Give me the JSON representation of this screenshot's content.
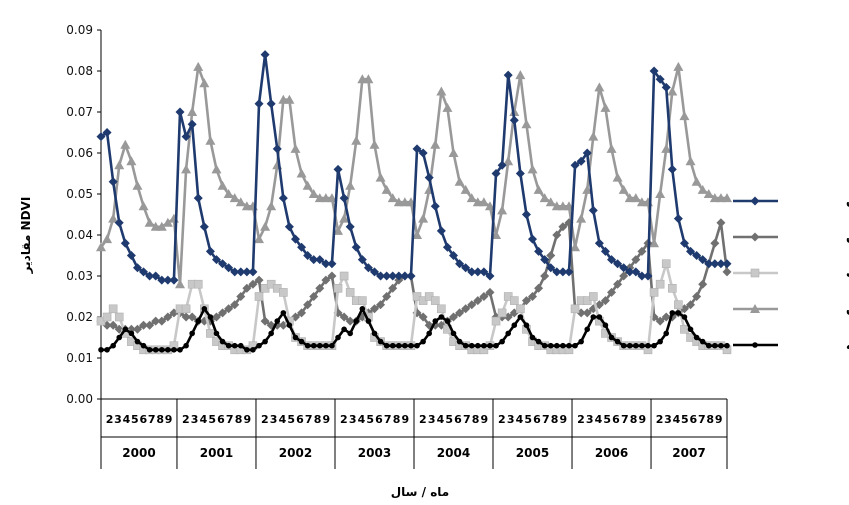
{
  "chart_data": {
    "type": "line",
    "title": "",
    "xlabel": "ماه / سال",
    "ylabel": "مقادیر NDVI",
    "ylim": [
      0,
      0.09
    ],
    "ytick_step": 0.01,
    "ytick_labels": [
      "0.00",
      "0.01",
      "0.02",
      "0.03",
      "0.04",
      "0.05",
      "0.06",
      "0.07",
      "0.08",
      "0.09"
    ],
    "years": [
      "2000",
      "2001",
      "2002",
      "2003",
      "2004",
      "2005",
      "2006",
      "2007"
    ],
    "month_labels": [
      [
        "2",
        "3",
        "4",
        "5",
        "6",
        "7",
        "8",
        "9"
      ],
      [
        "2",
        "3",
        "4",
        "5",
        "6",
        "7",
        "8",
        "9"
      ],
      [
        "2",
        "3",
        "4",
        "5",
        "6",
        "7",
        "8",
        "9"
      ],
      [
        "2",
        "3",
        "4",
        "5",
        "6",
        "7",
        "8",
        "9"
      ],
      [
        "2",
        "3",
        "4",
        "5",
        "6",
        "7",
        "8",
        "9"
      ],
      [
        "2",
        "3",
        "4",
        "5",
        "6",
        "7",
        "8",
        "9"
      ],
      [
        "2",
        "3",
        "4",
        "5",
        "6",
        "7",
        "8",
        "9"
      ],
      [
        "2",
        "3",
        "4",
        "5",
        "6",
        "7",
        "8",
        "9"
      ]
    ],
    "grid": false,
    "legend_position": "right",
    "series": [
      {
        "name": "آیخوان",
        "color": "#1f3a6e",
        "marker": "diamond",
        "values": [
          0.064,
          0.065,
          0.053,
          0.043,
          0.038,
          0.035,
          0.032,
          0.031,
          0.03,
          0.03,
          0.029,
          0.029,
          0.029,
          0.07,
          0.064,
          0.067,
          0.049,
          0.042,
          0.036,
          0.034,
          0.033,
          0.032,
          0.031,
          0.031,
          0.031,
          0.031,
          0.072,
          0.084,
          0.072,
          0.061,
          0.049,
          0.042,
          0.039,
          0.037,
          0.035,
          0.034,
          0.034,
          0.033,
          0.033,
          0.056,
          0.049,
          0.042,
          0.037,
          0.034,
          0.032,
          0.031,
          0.03,
          0.03,
          0.03,
          0.03,
          0.03,
          0.03,
          0.061,
          0.06,
          0.054,
          0.047,
          0.041,
          0.037,
          0.035,
          0.033,
          0.032,
          0.031,
          0.031,
          0.031,
          0.03,
          0.055,
          0.057,
          0.079,
          0.068,
          0.055,
          0.045,
          0.039,
          0.036,
          0.034,
          0.032,
          0.031,
          0.031,
          0.031,
          0.057,
          0.058,
          0.06,
          0.046,
          0.038,
          0.036,
          0.034,
          0.033,
          0.032,
          0.031,
          0.031,
          0.03,
          0.03,
          0.08,
          0.078,
          0.076,
          0.056,
          0.044,
          0.038,
          0.036,
          0.035,
          0.034,
          0.033,
          0.033,
          0.033,
          0.033
        ]
      },
      {
        "name": "مهران",
        "color": "#707070",
        "marker": "diamond",
        "values": [
          0.019,
          0.018,
          0.018,
          0.017,
          0.017,
          0.017,
          0.017,
          0.018,
          0.018,
          0.019,
          0.019,
          0.02,
          0.021,
          0.021,
          0.02,
          0.02,
          0.019,
          0.019,
          0.019,
          0.02,
          0.021,
          0.022,
          0.023,
          0.025,
          0.027,
          0.028,
          0.029,
          0.019,
          0.018,
          0.018,
          0.018,
          0.019,
          0.02,
          0.021,
          0.023,
          0.025,
          0.027,
          0.029,
          0.03,
          0.021,
          0.02,
          0.019,
          0.019,
          0.02,
          0.021,
          0.022,
          0.023,
          0.025,
          0.027,
          0.029,
          0.03,
          0.03,
          0.021,
          0.02,
          0.018,
          0.018,
          0.018,
          0.019,
          0.02,
          0.021,
          0.022,
          0.023,
          0.024,
          0.025,
          0.026,
          0.02,
          0.02,
          0.02,
          0.021,
          0.022,
          0.024,
          0.025,
          0.027,
          0.03,
          0.035,
          0.04,
          0.042,
          0.043,
          0.022,
          0.021,
          0.021,
          0.022,
          0.023,
          0.024,
          0.026,
          0.028,
          0.03,
          0.032,
          0.034,
          0.036,
          0.038,
          0.02,
          0.019,
          0.02,
          0.02,
          0.021,
          0.022,
          0.023,
          0.025,
          0.028,
          0.033,
          0.038,
          0.043,
          0.031
        ]
      },
      {
        "name": "پایتخت",
        "color": "#c8c8c8",
        "marker": "square",
        "values": [
          0.019,
          0.02,
          0.022,
          0.02,
          0.016,
          0.014,
          0.013,
          0.012,
          0.012,
          0.012,
          0.012,
          0.012,
          0.013,
          0.022,
          0.022,
          0.028,
          0.028,
          0.022,
          0.016,
          0.014,
          0.013,
          0.013,
          0.012,
          0.012,
          0.012,
          0.013,
          0.025,
          0.027,
          0.028,
          0.027,
          0.026,
          0.019,
          0.015,
          0.014,
          0.013,
          0.013,
          0.013,
          0.013,
          0.013,
          0.027,
          0.03,
          0.026,
          0.024,
          0.024,
          0.02,
          0.015,
          0.014,
          0.013,
          0.013,
          0.013,
          0.013,
          0.013,
          0.025,
          0.024,
          0.025,
          0.024,
          0.022,
          0.017,
          0.014,
          0.013,
          0.013,
          0.012,
          0.012,
          0.012,
          0.013,
          0.019,
          0.021,
          0.025,
          0.024,
          0.022,
          0.017,
          0.014,
          0.013,
          0.013,
          0.012,
          0.012,
          0.012,
          0.012,
          0.022,
          0.024,
          0.024,
          0.025,
          0.019,
          0.016,
          0.015,
          0.014,
          0.013,
          0.013,
          0.013,
          0.013,
          0.012,
          0.026,
          0.028,
          0.033,
          0.027,
          0.023,
          0.017,
          0.015,
          0.014,
          0.013,
          0.013,
          0.013,
          0.013,
          0.012
        ]
      },
      {
        "name": "سراب ایوان",
        "color": "#999999",
        "marker": "triangle",
        "values": [
          0.037,
          0.039,
          0.044,
          0.057,
          0.062,
          0.058,
          0.052,
          0.047,
          0.043,
          0.042,
          0.042,
          0.043,
          0.044,
          0.028,
          0.056,
          0.07,
          0.081,
          0.077,
          0.063,
          0.056,
          0.052,
          0.05,
          0.049,
          0.048,
          0.047,
          0.047,
          0.039,
          0.042,
          0.047,
          0.057,
          0.073,
          0.073,
          0.061,
          0.055,
          0.052,
          0.05,
          0.049,
          0.049,
          0.049,
          0.041,
          0.044,
          0.052,
          0.063,
          0.078,
          0.078,
          0.062,
          0.054,
          0.051,
          0.049,
          0.048,
          0.048,
          0.048,
          0.04,
          0.044,
          0.051,
          0.062,
          0.075,
          0.071,
          0.06,
          0.053,
          0.051,
          0.049,
          0.048,
          0.048,
          0.047,
          0.04,
          0.046,
          0.058,
          0.07,
          0.079,
          0.067,
          0.056,
          0.051,
          0.049,
          0.048,
          0.047,
          0.047,
          0.047,
          0.037,
          0.044,
          0.051,
          0.064,
          0.076,
          0.071,
          0.061,
          0.054,
          0.051,
          0.049,
          0.049,
          0.048,
          0.048,
          0.038,
          0.05,
          0.061,
          0.075,
          0.081,
          0.069,
          0.058,
          0.053,
          0.051,
          0.05,
          0.049,
          0.049,
          0.049
        ]
      },
      {
        "name": "پشت مله",
        "color": "#000000",
        "marker": "circle",
        "values": [
          0.012,
          0.012,
          0.013,
          0.015,
          0.017,
          0.016,
          0.014,
          0.013,
          0.012,
          0.012,
          0.012,
          0.012,
          0.012,
          0.012,
          0.013,
          0.016,
          0.019,
          0.022,
          0.02,
          0.016,
          0.014,
          0.013,
          0.013,
          0.013,
          0.012,
          0.012,
          0.013,
          0.014,
          0.016,
          0.019,
          0.021,
          0.018,
          0.015,
          0.014,
          0.013,
          0.013,
          0.013,
          0.013,
          0.013,
          0.015,
          0.017,
          0.016,
          0.019,
          0.022,
          0.019,
          0.016,
          0.014,
          0.013,
          0.013,
          0.013,
          0.013,
          0.013,
          0.013,
          0.014,
          0.016,
          0.019,
          0.02,
          0.019,
          0.016,
          0.014,
          0.013,
          0.013,
          0.013,
          0.013,
          0.013,
          0.013,
          0.014,
          0.016,
          0.018,
          0.02,
          0.018,
          0.015,
          0.014,
          0.013,
          0.013,
          0.013,
          0.013,
          0.013,
          0.013,
          0.014,
          0.017,
          0.02,
          0.02,
          0.018,
          0.015,
          0.014,
          0.013,
          0.013,
          0.013,
          0.013,
          0.013,
          0.013,
          0.014,
          0.016,
          0.021,
          0.021,
          0.02,
          0.017,
          0.015,
          0.014,
          0.013,
          0.013,
          0.013,
          0.013
        ]
      }
    ]
  }
}
